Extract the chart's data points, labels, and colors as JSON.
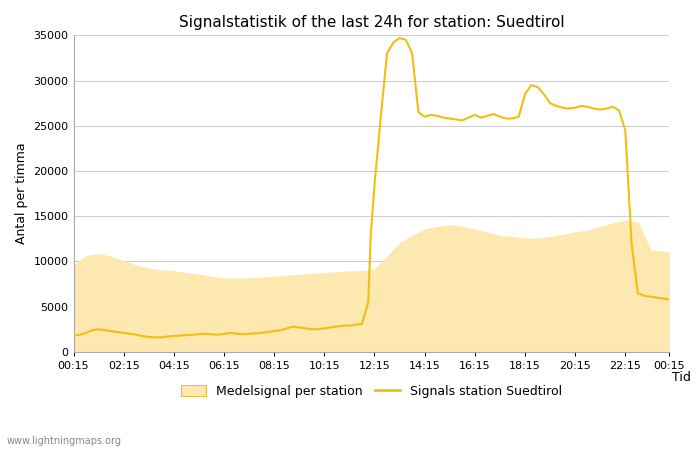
{
  "title": "Signalstatistik of the last 24h for station: Suedtirol",
  "xlabel": "Tid",
  "ylabel": "Antal per timma",
  "ylim": [
    0,
    35000
  ],
  "yticks": [
    0,
    5000,
    10000,
    15000,
    20000,
    25000,
    30000,
    35000
  ],
  "ytick_labels": [
    "0",
    "5000",
    "10000",
    "15000",
    "20000",
    "25000",
    "30000",
    "35000"
  ],
  "background_color": "#ffffff",
  "grid_color": "#cccccc",
  "watermark": "www.lightningmaps.org",
  "legend_labels": [
    "Medelsignal per station",
    "Signals station Suedtirol"
  ],
  "fill_color": "#fde8b0",
  "line_color": "#f0c010",
  "x_labels": [
    "00:15",
    "02:15",
    "04:15",
    "06:15",
    "08:15",
    "10:15",
    "12:15",
    "14:15",
    "16:15",
    "18:15",
    "20:15",
    "22:15",
    "00:15"
  ],
  "tick_positions": [
    0.25,
    2.25,
    4.25,
    6.25,
    8.25,
    10.25,
    12.25,
    14.25,
    16.25,
    18.25,
    20.25,
    22.25,
    24.0
  ],
  "fill_times": [
    0.25,
    0.75,
    1.25,
    1.75,
    2.25,
    2.5,
    2.75,
    3.25,
    3.75,
    4.25,
    4.75,
    5.25,
    5.75,
    6.25,
    6.75,
    7.25,
    7.75,
    8.25,
    8.75,
    9.25,
    9.75,
    10.25,
    10.75,
    11.25,
    11.75,
    12.0,
    12.25,
    12.75,
    13.25,
    13.75,
    14.25,
    14.75,
    15.25,
    15.75,
    16.25,
    16.75,
    17.25,
    17.75,
    18.25,
    18.75,
    19.25,
    19.75,
    20.25,
    20.75,
    21.25,
    21.75,
    22.25,
    22.75,
    23.25,
    23.75,
    24.0
  ],
  "fill_values": [
    9500,
    10600,
    10800,
    10500,
    10000,
    9800,
    9500,
    9200,
    9000,
    8900,
    8700,
    8500,
    8300,
    8100,
    8100,
    8100,
    8200,
    8300,
    8400,
    8500,
    8600,
    8700,
    8800,
    8900,
    8900,
    9000,
    9100,
    10500,
    12000,
    12800,
    13500,
    13800,
    14000,
    13800,
    13500,
    13200,
    12800,
    12700,
    12500,
    12500,
    12700,
    12900,
    13200,
    13400,
    13800,
    14200,
    14500,
    14300,
    11200,
    11100,
    11000
  ],
  "signal_times": [
    0.25,
    0.5,
    0.75,
    1.0,
    1.25,
    1.5,
    1.75,
    2.0,
    2.25,
    2.5,
    2.75,
    3.0,
    3.25,
    3.5,
    3.75,
    4.0,
    4.25,
    4.5,
    4.75,
    5.0,
    5.25,
    5.5,
    5.75,
    6.0,
    6.25,
    6.5,
    6.75,
    7.0,
    7.25,
    7.5,
    7.75,
    8.0,
    8.25,
    8.5,
    8.75,
    9.0,
    9.25,
    9.5,
    9.75,
    10.0,
    10.25,
    10.5,
    10.75,
    11.0,
    11.25,
    11.5,
    11.75,
    12.0,
    12.1,
    12.25,
    12.5,
    12.75,
    13.0,
    13.25,
    13.5,
    13.75,
    14.0,
    14.25,
    14.5,
    14.75,
    15.0,
    15.25,
    15.5,
    15.75,
    16.0,
    16.25,
    16.5,
    16.75,
    17.0,
    17.25,
    17.5,
    17.75,
    18.0,
    18.25,
    18.5,
    18.75,
    19.0,
    19.25,
    19.5,
    19.75,
    20.0,
    20.25,
    20.5,
    20.75,
    21.0,
    21.25,
    21.5,
    21.75,
    22.0,
    22.25,
    22.5,
    22.75,
    23.0,
    23.25,
    23.5,
    23.75,
    24.0
  ],
  "signal_values": [
    1800,
    1900,
    2100,
    2400,
    2500,
    2400,
    2300,
    2200,
    2100,
    2000,
    1900,
    1750,
    1650,
    1600,
    1600,
    1700,
    1750,
    1800,
    1850,
    1900,
    1950,
    2000,
    1950,
    1900,
    2000,
    2100,
    2000,
    1950,
    2000,
    2050,
    2100,
    2200,
    2300,
    2400,
    2600,
    2800,
    2700,
    2600,
    2500,
    2500,
    2600,
    2700,
    2800,
    2900,
    2900,
    3000,
    3100,
    5500,
    13000,
    18500,
    26000,
    33000,
    34200,
    34700,
    34500,
    33000,
    26500,
    26000,
    26200,
    26100,
    25900,
    25800,
    25700,
    25600,
    25900,
    26200,
    25900,
    26100,
    26300,
    26000,
    25800,
    25800,
    26000,
    28500,
    29500,
    29300,
    28500,
    27500,
    27200,
    27000,
    26900,
    27000,
    27200,
    27100,
    26900,
    26800,
    26900,
    27100,
    26700,
    24500,
    12000,
    6500,
    6200,
    6100,
    6000,
    5900,
    5800
  ]
}
